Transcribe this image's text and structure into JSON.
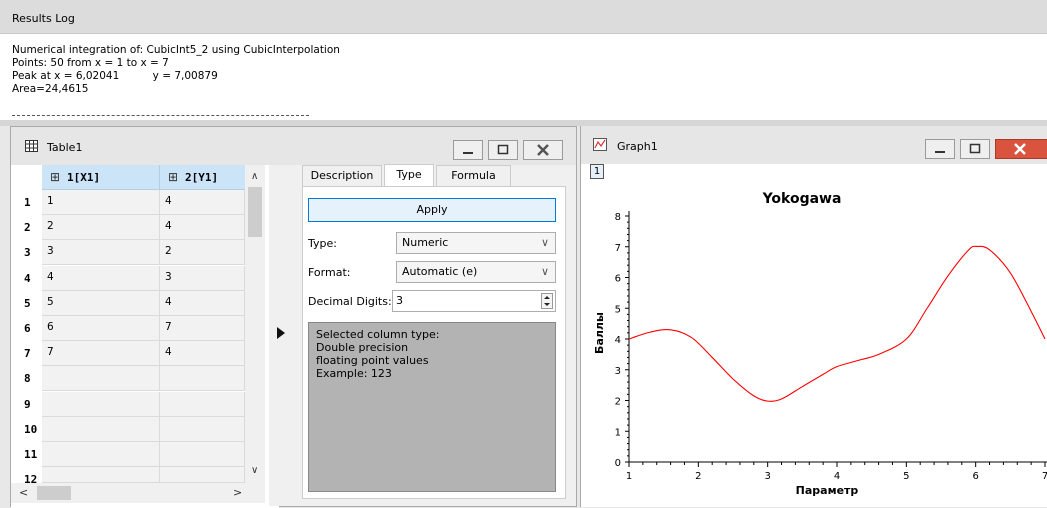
{
  "results_log": {
    "title": "Results Log",
    "lines": [
      "Numerical integration of: CubicInt5_2 using CubicInterpolation",
      "Points: 50 from x = 1 to x = 7",
      "Peak at x = 6,02041          y = 7,00879",
      "Area=24,4615"
    ]
  },
  "table_window": {
    "title": "Table1",
    "columns": [
      "1[X1]",
      "2[Y1]"
    ],
    "row_numbers": [
      "1",
      "2",
      "3",
      "4",
      "5",
      "6",
      "7",
      "8",
      "9",
      "10",
      "11",
      "12"
    ],
    "rows": [
      [
        "1",
        "4"
      ],
      [
        "2",
        "4"
      ],
      [
        "3",
        "2"
      ],
      [
        "4",
        "3"
      ],
      [
        "5",
        "4"
      ],
      [
        "6",
        "7"
      ],
      [
        "7",
        "4"
      ],
      [
        "",
        ""
      ],
      [
        "",
        ""
      ],
      [
        "",
        ""
      ],
      [
        "",
        ""
      ],
      [
        "",
        ""
      ]
    ]
  },
  "column_options": {
    "tabs": [
      "Description",
      "Type",
      "Formula"
    ],
    "active_tab": "Type",
    "apply_label": "Apply",
    "type_label": "Type:",
    "type_value": "Numeric",
    "format_label": "Format:",
    "format_value": "Automatic (e)",
    "decimal_label": "Decimal Digits:",
    "decimal_value": "3",
    "info_lines": [
      "Selected column type:",
      "Double precision",
      "floating point values",
      "Example: 123"
    ]
  },
  "graph_window": {
    "title": "Graph1",
    "layer_label": "1"
  },
  "chart_data": {
    "type": "line",
    "title": "Yokogawa",
    "xlabel": "Параметр",
    "ylabel": "Баллы",
    "xlim": [
      1,
      7
    ],
    "ylim": [
      0,
      8
    ],
    "x_ticks": [
      "1",
      "2",
      "3",
      "4",
      "5",
      "6",
      "7"
    ],
    "y_ticks": [
      "0",
      "1",
      "2",
      "3",
      "4",
      "5",
      "6",
      "7",
      "8"
    ],
    "grid": false,
    "series": [
      {
        "color": "#ff0000",
        "x": [
          1,
          1.3,
          1.6,
          1.9,
          2.2,
          2.5,
          2.8,
          3.0,
          3.2,
          3.5,
          3.8,
          4.0,
          4.3,
          4.6,
          5.0,
          5.3,
          5.6,
          5.9,
          6.02,
          6.2,
          6.5,
          6.8,
          7.0
        ],
        "y": [
          4.0,
          4.22,
          4.3,
          4.05,
          3.4,
          2.7,
          2.15,
          1.98,
          2.05,
          2.45,
          2.85,
          3.1,
          3.3,
          3.5,
          4.0,
          5.0,
          6.05,
          6.9,
          7.01,
          6.9,
          6.15,
          4.9,
          4.0
        ]
      }
    ]
  },
  "colors": {
    "header_blue": "#cce4f7",
    "info_panel_gray": "#b3b3b3",
    "curve_red": "#ff0000",
    "close_red": "#d9533e"
  }
}
